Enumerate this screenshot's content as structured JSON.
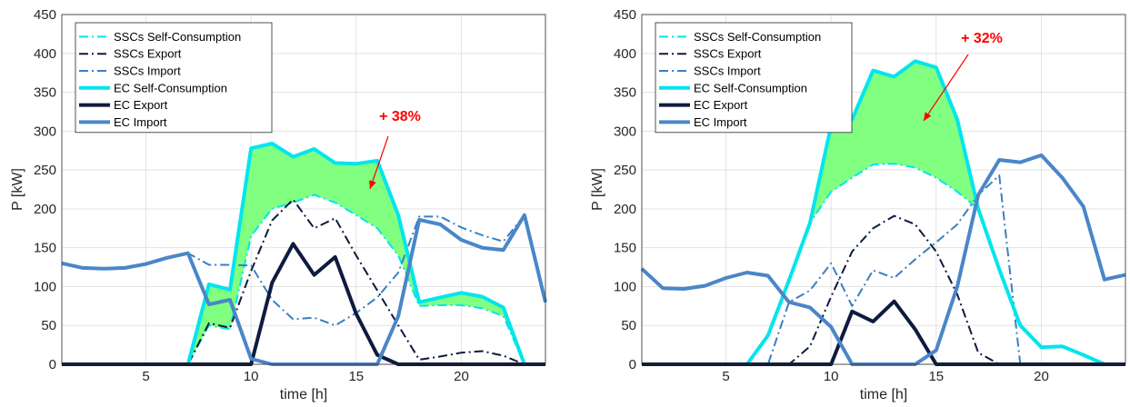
{
  "chart_data": [
    {
      "type": "line",
      "xlabel": "time [h]",
      "ylabel": "P [kW]",
      "xlim": [
        1,
        24
      ],
      "ylim": [
        0,
        450
      ],
      "xticks": [
        5,
        10,
        15,
        20
      ],
      "yticks": [
        0,
        50,
        100,
        150,
        200,
        250,
        300,
        350,
        400,
        450
      ],
      "grid": "on",
      "legend_position": "top-left",
      "annotation": {
        "text": "+ 38%",
        "color": "#ff0000"
      },
      "fill": {
        "between": [
          "EC Self-Consumption",
          "SSCs Self-Consumption"
        ],
        "color": "#80ff80"
      },
      "x": [
        1,
        2,
        3,
        4,
        5,
        6,
        7,
        8,
        9,
        10,
        11,
        12,
        13,
        14,
        15,
        16,
        17,
        18,
        19,
        20,
        21,
        22,
        23,
        24
      ],
      "series": [
        {
          "name": "SSCs Self-Consumption",
          "color": "#00e5ee",
          "style": "dashdot",
          "width": 2,
          "values": [
            0,
            0,
            0,
            0,
            0,
            0,
            0,
            50,
            45,
            165,
            200,
            208,
            218,
            208,
            192,
            175,
            140,
            75,
            76,
            76,
            72,
            62,
            0,
            0
          ]
        },
        {
          "name": "SSCs Export",
          "color": "#0d1b3e",
          "style": "dashdot",
          "width": 2,
          "values": [
            0,
            0,
            0,
            0,
            0,
            0,
            0,
            53,
            47,
            120,
            185,
            212,
            175,
            188,
            140,
            95,
            50,
            6,
            10,
            15,
            17,
            11,
            0,
            0
          ]
        },
        {
          "name": "SSCs Import",
          "color": "#3a7fc1",
          "style": "dashdot",
          "width": 2,
          "values": [
            130,
            124,
            123,
            124,
            129,
            137,
            143,
            128,
            128,
            127,
            83,
            58,
            60,
            50,
            66,
            86,
            118,
            190,
            190,
            176,
            166,
            158,
            192,
            80
          ]
        },
        {
          "name": "EC Self-Consumption",
          "color": "#00e5ee",
          "style": "solid",
          "width": 4,
          "values": [
            0,
            0,
            0,
            0,
            0,
            0,
            0,
            103,
            96,
            278,
            284,
            267,
            277,
            259,
            258,
            262,
            192,
            80,
            86,
            92,
            87,
            73,
            0,
            0
          ]
        },
        {
          "name": "EC Export",
          "color": "#0d1b3e",
          "style": "solid",
          "width": 4,
          "values": [
            0,
            0,
            0,
            0,
            0,
            0,
            0,
            0,
            0,
            0,
            105,
            155,
            115,
            138,
            65,
            12,
            0,
            0,
            0,
            0,
            0,
            0,
            0,
            0
          ]
        },
        {
          "name": "EC Import",
          "color": "#4a86c8",
          "style": "solid",
          "width": 4,
          "values": [
            130,
            124,
            123,
            124,
            129,
            137,
            143,
            77,
            83,
            7,
            0,
            0,
            0,
            0,
            0,
            0,
            62,
            186,
            180,
            160,
            150,
            147,
            192,
            80
          ]
        }
      ]
    },
    {
      "type": "line",
      "xlabel": "time [h]",
      "ylabel": "P [kW]",
      "xlim": [
        1,
        24
      ],
      "ylim": [
        0,
        450
      ],
      "xticks": [
        5,
        10,
        15,
        20
      ],
      "yticks": [
        0,
        50,
        100,
        150,
        200,
        250,
        300,
        350,
        400,
        450
      ],
      "grid": "on",
      "legend_position": "top-left",
      "annotation": {
        "text": "+ 32%",
        "color": "#ff0000"
      },
      "fill": {
        "between": [
          "EC Self-Consumption",
          "SSCs Self-Consumption"
        ],
        "color": "#80ff80"
      },
      "x": [
        1,
        2,
        3,
        4,
        5,
        6,
        7,
        8,
        9,
        10,
        11,
        12,
        13,
        14,
        15,
        16,
        17,
        18,
        19,
        20,
        21,
        22,
        23,
        24
      ],
      "series": [
        {
          "name": "SSCs Self-Consumption",
          "color": "#00e5ee",
          "style": "dashdot",
          "width": 2,
          "values": [
            0,
            0,
            0,
            0,
            0,
            0,
            37,
            108,
            182,
            222,
            240,
            257,
            258,
            253,
            240,
            222,
            200,
            122,
            50,
            22,
            23,
            12,
            0,
            0
          ]
        },
        {
          "name": "SSCs Export",
          "color": "#0d1b3e",
          "style": "dashdot",
          "width": 2,
          "values": [
            0,
            0,
            0,
            0,
            0,
            0,
            0,
            0,
            23,
            87,
            145,
            175,
            191,
            180,
            145,
            90,
            15,
            0,
            0,
            0,
            0,
            0,
            0,
            0
          ]
        },
        {
          "name": "SSCs Import",
          "color": "#3a7fc1",
          "style": "dashdot",
          "width": 2,
          "values": [
            0,
            0,
            0,
            0,
            0,
            0,
            0,
            80,
            95,
            130,
            75,
            121,
            111,
            135,
            157,
            180,
            218,
            243,
            0,
            0,
            0,
            0,
            0,
            0
          ]
        },
        {
          "name": "EC Self-Consumption",
          "color": "#00e5ee",
          "style": "solid",
          "width": 4,
          "values": [
            0,
            0,
            0,
            0,
            0,
            0,
            37,
            108,
            182,
            307,
            315,
            378,
            370,
            390,
            382,
            315,
            200,
            122,
            50,
            22,
            23,
            12,
            0,
            0
          ]
        },
        {
          "name": "EC Export",
          "color": "#0d1b3e",
          "style": "solid",
          "width": 4,
          "values": [
            0,
            0,
            0,
            0,
            0,
            0,
            0,
            0,
            0,
            0,
            68,
            55,
            81,
            45,
            0,
            0,
            0,
            0,
            0,
            0,
            0,
            0,
            0,
            0
          ]
        },
        {
          "name": "EC Import",
          "color": "#4a86c8",
          "style": "solid",
          "width": 4,
          "values": [
            123,
            98,
            97,
            101,
            111,
            118,
            114,
            80,
            73,
            48,
            0,
            0,
            0,
            0,
            18,
            100,
            218,
            263,
            260,
            269,
            240,
            203,
            109,
            115
          ]
        }
      ]
    }
  ]
}
